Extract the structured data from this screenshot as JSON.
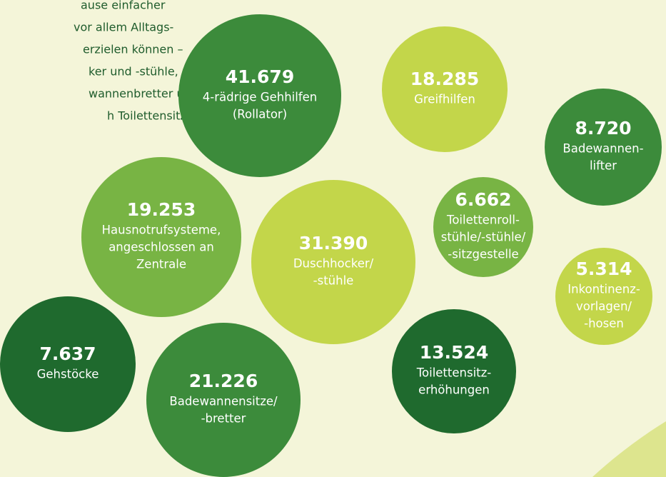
{
  "intro": [
    "ause einfacher",
    "vor allem Alltags-",
    "erzielen können –",
    "ker und -stühle,",
    "wannenbretter und",
    "h Toilettensitz-"
  ],
  "bubbles": [
    {
      "value": "41.679",
      "label": [
        "4-rädrige Gehhilfen",
        "(Rollator)"
      ]
    },
    {
      "value": "18.285",
      "label": [
        "Greifhilfen"
      ]
    },
    {
      "value": "8.720",
      "label": [
        "Badewannen-",
        "lifter"
      ]
    },
    {
      "value": "19.253",
      "label": [
        "Hausnotrufsysteme,",
        "angeschlossen an",
        "Zentrale"
      ]
    },
    {
      "value": "31.390",
      "label": [
        "Duschhocker/",
        "-stühle"
      ]
    },
    {
      "value": "6.662",
      "label": [
        "Toilettenroll-",
        "stühle/-stühle/",
        "-sitzgestelle"
      ]
    },
    {
      "value": "5.314",
      "label": [
        "Inkontinenz-",
        "vorlagen/",
        "-hosen"
      ]
    },
    {
      "value": "7.637",
      "label": [
        "Gehstöcke"
      ]
    },
    {
      "value": "21.226",
      "label": [
        "Badewannensitze/",
        "-bretter"
      ]
    },
    {
      "value": "13.524",
      "label": [
        "Toilettensitz-",
        "erhöhungen"
      ]
    }
  ]
}
